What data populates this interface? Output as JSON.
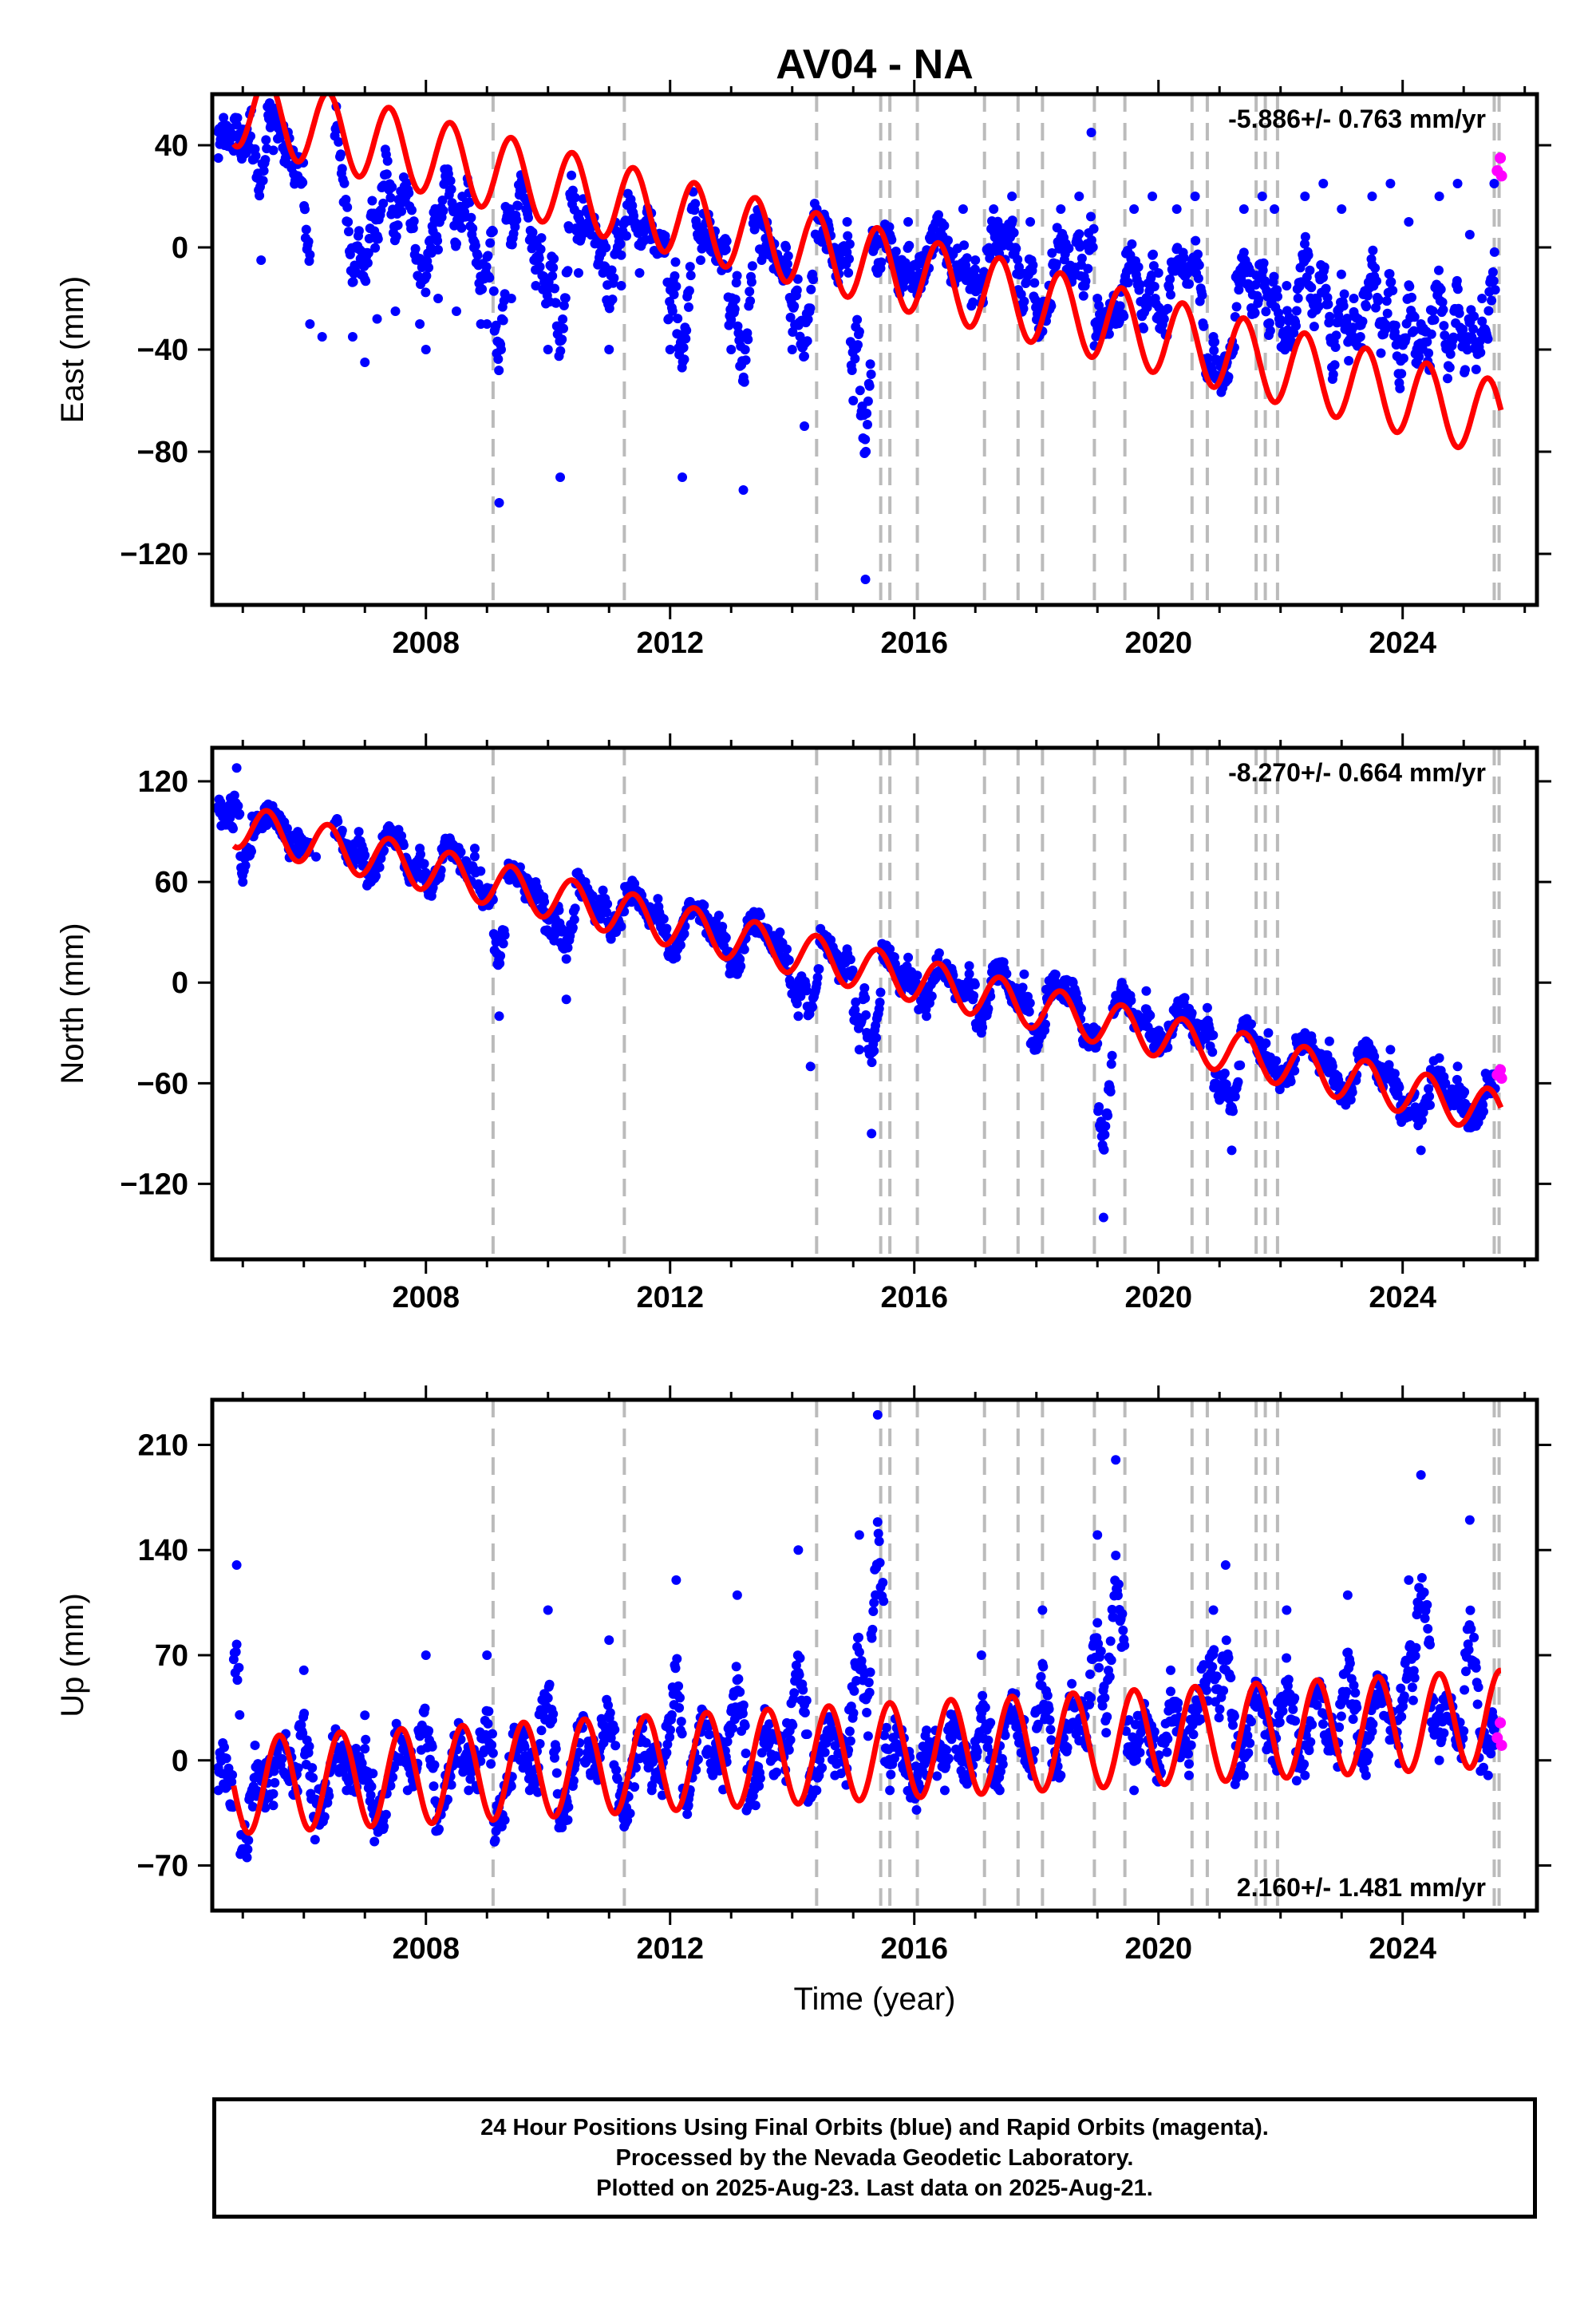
{
  "title": "AV04 - NA",
  "xlabel": "Time (year)",
  "footer": {
    "line1": "24 Hour Positions Using Final Orbits (blue) and Rapid Orbits (magenta).",
    "line2": "Processed by the Nevada Geodetic Laboratory.",
    "line3": "Plotted on 2025-Aug-23. Last data on 2025-Aug-21."
  },
  "colors": {
    "final_orbits": "#0000ff",
    "rapid_orbits": "#ff00ff",
    "model": "#ff0000",
    "event_lines": "#bbbbbb",
    "frame": "#000000"
  },
  "chart_data": [
    {
      "type": "scatter",
      "ylabel": "East (mm)",
      "rate_label": "-5.886+/- 0.763 mm/yr",
      "rate_position": "top-right",
      "xlim": [
        2004.5,
        2026.2
      ],
      "ylim": [
        -140,
        60
      ],
      "x_ticks": [
        2008,
        2012,
        2016,
        2020,
        2024
      ],
      "y_ticks": [
        40,
        0,
        -40,
        -80,
        -120
      ],
      "y_tick_labels": [
        "40",
        "0",
        "−40",
        "−80",
        "−120"
      ],
      "rate_mm_yr": -5.886,
      "model": {
        "ref_year": 2015.0,
        "offset": -5,
        "amplitude": 15,
        "phase_year": 0.15
      },
      "series": [
        {
          "key": "final",
          "values_xy": [
            [
              2004.6,
              35
            ],
            [
              2004.7,
              40
            ],
            [
              2004.8,
              45
            ],
            [
              2004.9,
              48
            ],
            [
              2005.0,
              38
            ],
            [
              2005.3,
              -5
            ],
            [
              2005.5,
              38
            ],
            [
              2005.7,
              35
            ],
            [
              2005.9,
              28
            ],
            [
              2006.1,
              -30
            ],
            [
              2006.3,
              -35
            ],
            [
              2006.8,
              -35
            ],
            [
              2007.0,
              -45
            ],
            [
              2007.2,
              -28
            ],
            [
              2007.5,
              -25
            ],
            [
              2007.9,
              -30
            ],
            [
              2008.0,
              -40
            ],
            [
              2008.2,
              -20
            ],
            [
              2008.5,
              -25
            ],
            [
              2008.9,
              -30
            ],
            [
              2009.0,
              -30
            ],
            [
              2009.2,
              -100
            ],
            [
              2009.4,
              -20
            ],
            [
              2009.8,
              -15
            ],
            [
              2010.0,
              -40
            ],
            [
              2010.2,
              -90
            ],
            [
              2010.5,
              -10
            ],
            [
              2010.9,
              -10
            ],
            [
              2011.0,
              -40
            ],
            [
              2011.2,
              -15
            ],
            [
              2011.5,
              -10
            ],
            [
              2011.9,
              0
            ],
            [
              2012.0,
              -40
            ],
            [
              2012.2,
              -90
            ],
            [
              2012.5,
              -5
            ],
            [
              2012.9,
              0
            ],
            [
              2013.0,
              -40
            ],
            [
              2013.2,
              -95
            ],
            [
              2013.5,
              -5
            ],
            [
              2013.9,
              0
            ],
            [
              2014.0,
              -40
            ],
            [
              2014.2,
              -70
            ],
            [
              2014.5,
              5
            ],
            [
              2014.9,
              10
            ],
            [
              2015.0,
              -60
            ],
            [
              2015.2,
              -130
            ],
            [
              2015.4,
              -10
            ],
            [
              2015.6,
              5
            ],
            [
              2015.9,
              10
            ],
            [
              2016.1,
              -5
            ],
            [
              2016.4,
              10
            ],
            [
              2016.8,
              15
            ],
            [
              2017.0,
              -5
            ],
            [
              2017.3,
              15
            ],
            [
              2017.6,
              20
            ],
            [
              2017.9,
              10
            ],
            [
              2018.1,
              -25
            ],
            [
              2018.4,
              15
            ],
            [
              2018.7,
              20
            ],
            [
              2018.9,
              45
            ],
            [
              2019.0,
              -20
            ],
            [
              2019.3,
              -30
            ],
            [
              2019.6,
              15
            ],
            [
              2019.9,
              20
            ],
            [
              2020.0,
              -10
            ],
            [
              2020.3,
              15
            ],
            [
              2020.6,
              20
            ],
            [
              2020.9,
              -35
            ],
            [
              2021.1,
              -50
            ],
            [
              2021.4,
              15
            ],
            [
              2021.7,
              20
            ],
            [
              2021.9,
              15
            ],
            [
              2022.1,
              -15
            ],
            [
              2022.4,
              20
            ],
            [
              2022.7,
              25
            ],
            [
              2023.0,
              15
            ],
            [
              2023.2,
              -20
            ],
            [
              2023.5,
              20
            ],
            [
              2023.8,
              25
            ],
            [
              2024.1,
              10
            ],
            [
              2024.3,
              -30
            ],
            [
              2024.6,
              20
            ],
            [
              2024.9,
              25
            ],
            [
              2025.1,
              5
            ],
            [
              2025.3,
              -20
            ],
            [
              2025.5,
              25
            ]
          ]
        },
        {
          "key": "rapid",
          "values_xy": [
            [
              2025.55,
              30
            ],
            [
              2025.6,
              35
            ],
            [
              2025.62,
              28
            ]
          ]
        }
      ]
    },
    {
      "type": "scatter",
      "ylabel": "North (mm)",
      "rate_label": "-8.270+/- 0.664 mm/yr",
      "rate_position": "top-right",
      "xlim": [
        2004.5,
        2026.2
      ],
      "ylim": [
        -165,
        140
      ],
      "x_ticks": [
        2008,
        2012,
        2016,
        2020,
        2024
      ],
      "y_ticks": [
        120,
        60,
        0,
        -60,
        -120
      ],
      "y_tick_labels": [
        "120",
        "60",
        "0",
        "−60",
        "−120"
      ],
      "rate_mm_yr": -8.27,
      "model": {
        "ref_year": 2015.0,
        "offset": 10,
        "amplitude": 13,
        "phase_year": 0.15
      },
      "series": [
        {
          "key": "final",
          "values_xy": [
            [
              2004.6,
              105
            ],
            [
              2004.8,
              110
            ],
            [
              2004.9,
              128
            ],
            [
              2005.0,
              60
            ],
            [
              2005.3,
              95
            ],
            [
              2005.6,
              100
            ],
            [
              2005.9,
              90
            ],
            [
              2006.2,
              75
            ],
            [
              2006.5,
              95
            ],
            [
              2006.9,
              90
            ],
            [
              2007.1,
              60
            ],
            [
              2007.5,
              90
            ],
            [
              2007.9,
              80
            ],
            [
              2008.1,
              55
            ],
            [
              2008.4,
              85
            ],
            [
              2008.8,
              80
            ],
            [
              2009.0,
              50
            ],
            [
              2009.2,
              -20
            ],
            [
              2009.4,
              65
            ],
            [
              2009.8,
              60
            ],
            [
              2010.1,
              25
            ],
            [
              2010.3,
              -10
            ],
            [
              2010.6,
              60
            ],
            [
              2010.9,
              55
            ],
            [
              2011.1,
              30
            ],
            [
              2011.4,
              55
            ],
            [
              2011.8,
              50
            ],
            [
              2012.1,
              15
            ],
            [
              2012.4,
              45
            ],
            [
              2012.8,
              40
            ],
            [
              2013.1,
              5
            ],
            [
              2013.4,
              35
            ],
            [
              2013.8,
              30
            ],
            [
              2014.1,
              -20
            ],
            [
              2014.3,
              -50
            ],
            [
              2014.6,
              25
            ],
            [
              2014.9,
              20
            ],
            [
              2015.1,
              -40
            ],
            [
              2015.3,
              -90
            ],
            [
              2015.6,
              20
            ],
            [
              2015.9,
              15
            ],
            [
              2016.2,
              -20
            ],
            [
              2016.5,
              10
            ],
            [
              2016.9,
              10
            ],
            [
              2017.1,
              -30
            ],
            [
              2017.4,
              10
            ],
            [
              2017.8,
              5
            ],
            [
              2018.0,
              -40
            ],
            [
              2018.3,
              5
            ],
            [
              2018.6,
              0
            ],
            [
              2018.9,
              -30
            ],
            [
              2019.1,
              -140
            ],
            [
              2019.4,
              0
            ],
            [
              2019.8,
              -5
            ],
            [
              2020.0,
              -30
            ],
            [
              2020.4,
              -10
            ],
            [
              2020.8,
              -15
            ],
            [
              2021.0,
              -70
            ],
            [
              2021.2,
              -100
            ],
            [
              2021.5,
              -25
            ],
            [
              2021.8,
              -30
            ],
            [
              2022.1,
              -60
            ],
            [
              2022.4,
              -30
            ],
            [
              2022.8,
              -35
            ],
            [
              2023.1,
              -70
            ],
            [
              2023.4,
              -35
            ],
            [
              2023.8,
              -40
            ],
            [
              2024.1,
              -80
            ],
            [
              2024.3,
              -100
            ],
            [
              2024.6,
              -45
            ],
            [
              2024.9,
              -50
            ],
            [
              2025.2,
              -85
            ],
            [
              2025.5,
              -55
            ]
          ]
        },
        {
          "key": "rapid",
          "values_xy": [
            [
              2025.55,
              -55
            ],
            [
              2025.6,
              -52
            ],
            [
              2025.62,
              -57
            ]
          ]
        }
      ]
    },
    {
      "type": "scatter",
      "ylabel": "Up (mm)",
      "rate_label": "2.160+/- 1.481 mm/yr",
      "rate_position": "bottom-right",
      "xlim": [
        2004.5,
        2026.2
      ],
      "ylim": [
        -100,
        240
      ],
      "x_ticks": [
        2008,
        2012,
        2016,
        2020,
        2024
      ],
      "y_ticks": [
        210,
        140,
        70,
        0,
        -70
      ],
      "y_tick_labels": [
        "210",
        "140",
        "70",
        "0",
        "−70"
      ],
      "rate_mm_yr": 2.16,
      "model": {
        "ref_year": 2015.0,
        "offset": 5,
        "amplitude": 32,
        "phase_year": 0.35
      },
      "series": [
        {
          "key": "final",
          "values_xy": [
            [
              2004.6,
              -20
            ],
            [
              2004.8,
              -30
            ],
            [
              2004.9,
              130
            ],
            [
              2005.0,
              -60
            ],
            [
              2005.2,
              10
            ],
            [
              2005.5,
              -30
            ],
            [
              2005.8,
              -10
            ],
            [
              2006.0,
              60
            ],
            [
              2006.3,
              -30
            ],
            [
              2006.7,
              -20
            ],
            [
              2007.0,
              30
            ],
            [
              2007.3,
              -40
            ],
            [
              2007.7,
              -20
            ],
            [
              2008.0,
              70
            ],
            [
              2008.3,
              -30
            ],
            [
              2008.7,
              -20
            ],
            [
              2009.0,
              70
            ],
            [
              2009.2,
              -40
            ],
            [
              2009.7,
              -20
            ],
            [
              2010.0,
              100
            ],
            [
              2010.3,
              -40
            ],
            [
              2010.7,
              -10
            ],
            [
              2011.0,
              80
            ],
            [
              2011.3,
              -40
            ],
            [
              2011.7,
              -20
            ],
            [
              2012.1,
              120
            ],
            [
              2012.3,
              -30
            ],
            [
              2012.7,
              -10
            ],
            [
              2013.1,
              110
            ],
            [
              2013.4,
              -30
            ],
            [
              2013.7,
              -10
            ],
            [
              2014.1,
              140
            ],
            [
              2014.4,
              -20
            ],
            [
              2014.7,
              -10
            ],
            [
              2015.1,
              150
            ],
            [
              2015.4,
              230
            ],
            [
              2015.6,
              -20
            ],
            [
              2015.9,
              -10
            ],
            [
              2016.2,
              20
            ],
            [
              2016.5,
              -20
            ],
            [
              2016.8,
              -10
            ],
            [
              2017.1,
              70
            ],
            [
              2017.4,
              -20
            ],
            [
              2017.8,
              10
            ],
            [
              2018.1,
              100
            ],
            [
              2018.4,
              -10
            ],
            [
              2018.7,
              20
            ],
            [
              2019.0,
              150
            ],
            [
              2019.3,
              200
            ],
            [
              2019.6,
              -20
            ],
            [
              2019.9,
              10
            ],
            [
              2020.2,
              60
            ],
            [
              2020.5,
              -10
            ],
            [
              2020.9,
              100
            ],
            [
              2021.1,
              130
            ],
            [
              2021.4,
              -10
            ],
            [
              2021.8,
              10
            ],
            [
              2022.1,
              100
            ],
            [
              2022.4,
              -10
            ],
            [
              2022.8,
              10
            ],
            [
              2023.1,
              110
            ],
            [
              2023.4,
              -10
            ],
            [
              2023.8,
              20
            ],
            [
              2024.1,
              120
            ],
            [
              2024.3,
              190
            ],
            [
              2024.6,
              0
            ],
            [
              2024.9,
              20
            ],
            [
              2025.1,
              160
            ],
            [
              2025.4,
              -10
            ],
            [
              2025.5,
              10
            ]
          ]
        },
        {
          "key": "rapid",
          "values_xy": [
            [
              2025.55,
              15
            ],
            [
              2025.6,
              25
            ],
            [
              2025.62,
              10
            ]
          ]
        }
      ]
    }
  ],
  "event_lines_x": [
    2009.1,
    2011.25,
    2014.4,
    2015.45,
    2015.6,
    2016.05,
    2017.15,
    2017.7,
    2018.1,
    2018.95,
    2019.45,
    2020.55,
    2020.8,
    2021.6,
    2021.75,
    2021.95,
    2025.5,
    2025.58
  ]
}
